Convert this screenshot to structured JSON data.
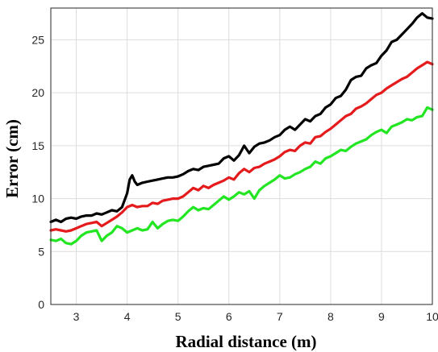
{
  "chart_data": {
    "type": "line",
    "title": "",
    "xlabel": "Radial distance (m)",
    "ylabel": "Error (cm)",
    "xlim": [
      2.5,
      10
    ],
    "ylim": [
      0,
      28
    ],
    "xticks": [
      3,
      4,
      5,
      6,
      7,
      8,
      9,
      10
    ],
    "yticks": [
      0,
      5,
      10,
      15,
      20,
      25
    ],
    "grid": true,
    "legend": "none",
    "series": [
      {
        "color": "#000000",
        "x": [
          2.5,
          2.6,
          2.7,
          2.8,
          2.9,
          3.0,
          3.1,
          3.2,
          3.3,
          3.4,
          3.5,
          3.6,
          3.7,
          3.8,
          3.9,
          4.0,
          4.05,
          4.1,
          4.15,
          4.2,
          4.3,
          4.4,
          4.5,
          4.6,
          4.7,
          4.8,
          4.9,
          5.0,
          5.1,
          5.2,
          5.3,
          5.4,
          5.5,
          5.6,
          5.7,
          5.8,
          5.9,
          6.0,
          6.1,
          6.2,
          6.3,
          6.4,
          6.5,
          6.6,
          6.7,
          6.8,
          6.9,
          7.0,
          7.1,
          7.2,
          7.3,
          7.4,
          7.5,
          7.6,
          7.7,
          7.8,
          7.9,
          8.0,
          8.1,
          8.2,
          8.3,
          8.4,
          8.5,
          8.6,
          8.7,
          8.8,
          8.9,
          9.0,
          9.1,
          9.2,
          9.3,
          9.4,
          9.5,
          9.6,
          9.7,
          9.8,
          9.9,
          10.0
        ],
        "y": [
          7.8,
          8.0,
          7.8,
          8.1,
          8.2,
          8.1,
          8.3,
          8.4,
          8.4,
          8.6,
          8.5,
          8.7,
          8.9,
          8.8,
          9.2,
          10.5,
          11.8,
          12.2,
          11.6,
          11.3,
          11.5,
          11.6,
          11.7,
          11.8,
          11.9,
          12.0,
          12.0,
          12.1,
          12.3,
          12.6,
          12.8,
          12.7,
          13.0,
          13.1,
          13.2,
          13.3,
          13.8,
          14.0,
          13.6,
          14.1,
          15.0,
          14.3,
          14.9,
          15.2,
          15.3,
          15.5,
          15.8,
          16.0,
          16.5,
          16.8,
          16.5,
          17.0,
          17.5,
          17.3,
          17.8,
          18.0,
          18.6,
          18.9,
          19.5,
          19.7,
          20.3,
          21.2,
          21.5,
          21.6,
          22.3,
          22.6,
          22.8,
          23.5,
          24.0,
          24.8,
          25.0,
          25.5,
          26.0,
          26.5,
          27.1,
          27.5,
          27.1,
          27.0
        ]
      },
      {
        "color": "#e41a1c",
        "x": [
          2.5,
          2.6,
          2.7,
          2.8,
          2.9,
          3.0,
          3.1,
          3.2,
          3.3,
          3.4,
          3.5,
          3.6,
          3.7,
          3.8,
          3.9,
          4.0,
          4.1,
          4.2,
          4.3,
          4.4,
          4.5,
          4.6,
          4.7,
          4.8,
          4.9,
          5.0,
          5.1,
          5.2,
          5.3,
          5.4,
          5.5,
          5.6,
          5.7,
          5.8,
          5.9,
          6.0,
          6.1,
          6.2,
          6.3,
          6.4,
          6.5,
          6.6,
          6.7,
          6.8,
          6.9,
          7.0,
          7.1,
          7.2,
          7.3,
          7.4,
          7.5,
          7.6,
          7.7,
          7.8,
          7.9,
          8.0,
          8.1,
          8.2,
          8.3,
          8.4,
          8.5,
          8.6,
          8.7,
          8.8,
          8.9,
          9.0,
          9.1,
          9.2,
          9.3,
          9.4,
          9.5,
          9.6,
          9.7,
          9.8,
          9.9,
          10.0
        ],
        "y": [
          7.0,
          7.1,
          7.0,
          6.9,
          7.0,
          7.2,
          7.4,
          7.6,
          7.7,
          7.8,
          7.4,
          7.7,
          8.0,
          8.3,
          8.7,
          9.2,
          9.4,
          9.2,
          9.3,
          9.3,
          9.6,
          9.5,
          9.8,
          9.9,
          10.0,
          10.0,
          10.2,
          10.6,
          11.0,
          10.8,
          11.2,
          11.0,
          11.3,
          11.5,
          11.7,
          12.0,
          11.8,
          12.4,
          12.8,
          12.5,
          12.9,
          13.0,
          13.3,
          13.5,
          13.7,
          14.0,
          14.4,
          14.6,
          14.5,
          15.0,
          15.3,
          15.2,
          15.8,
          15.9,
          16.3,
          16.6,
          17.0,
          17.4,
          17.8,
          18.0,
          18.5,
          18.7,
          19.0,
          19.4,
          19.8,
          20.0,
          20.4,
          20.7,
          21.0,
          21.3,
          21.5,
          21.9,
          22.3,
          22.6,
          22.9,
          22.7
        ]
      },
      {
        "color": "#22e622",
        "x": [
          2.5,
          2.6,
          2.7,
          2.8,
          2.9,
          3.0,
          3.1,
          3.2,
          3.3,
          3.4,
          3.5,
          3.6,
          3.7,
          3.8,
          3.9,
          4.0,
          4.1,
          4.2,
          4.3,
          4.4,
          4.5,
          4.6,
          4.7,
          4.8,
          4.9,
          5.0,
          5.1,
          5.2,
          5.3,
          5.4,
          5.5,
          5.6,
          5.7,
          5.8,
          5.9,
          6.0,
          6.1,
          6.2,
          6.3,
          6.4,
          6.5,
          6.6,
          6.7,
          6.8,
          6.9,
          7.0,
          7.1,
          7.2,
          7.3,
          7.4,
          7.5,
          7.6,
          7.7,
          7.8,
          7.9,
          8.0,
          8.1,
          8.2,
          8.3,
          8.4,
          8.5,
          8.6,
          8.7,
          8.8,
          8.9,
          9.0,
          9.1,
          9.2,
          9.3,
          9.4,
          9.5,
          9.6,
          9.7,
          9.8,
          9.9,
          10.0
        ],
        "y": [
          6.1,
          6.0,
          6.2,
          5.8,
          5.7,
          6.0,
          6.5,
          6.8,
          6.9,
          7.0,
          6.0,
          6.5,
          6.8,
          7.4,
          7.2,
          6.8,
          7.0,
          7.2,
          7.0,
          7.1,
          7.8,
          7.2,
          7.6,
          7.9,
          8.0,
          7.9,
          8.3,
          8.8,
          9.2,
          8.9,
          9.1,
          9.0,
          9.4,
          9.8,
          10.2,
          9.9,
          10.2,
          10.6,
          10.4,
          10.7,
          10.0,
          10.8,
          11.2,
          11.5,
          11.8,
          12.2,
          11.9,
          12.0,
          12.3,
          12.5,
          12.8,
          13.0,
          13.5,
          13.3,
          13.8,
          14.0,
          14.3,
          14.6,
          14.5,
          14.9,
          15.2,
          15.4,
          15.6,
          16.0,
          16.3,
          16.5,
          16.2,
          16.8,
          17.0,
          17.2,
          17.5,
          17.4,
          17.7,
          17.8,
          18.6,
          18.4
        ]
      }
    ]
  }
}
